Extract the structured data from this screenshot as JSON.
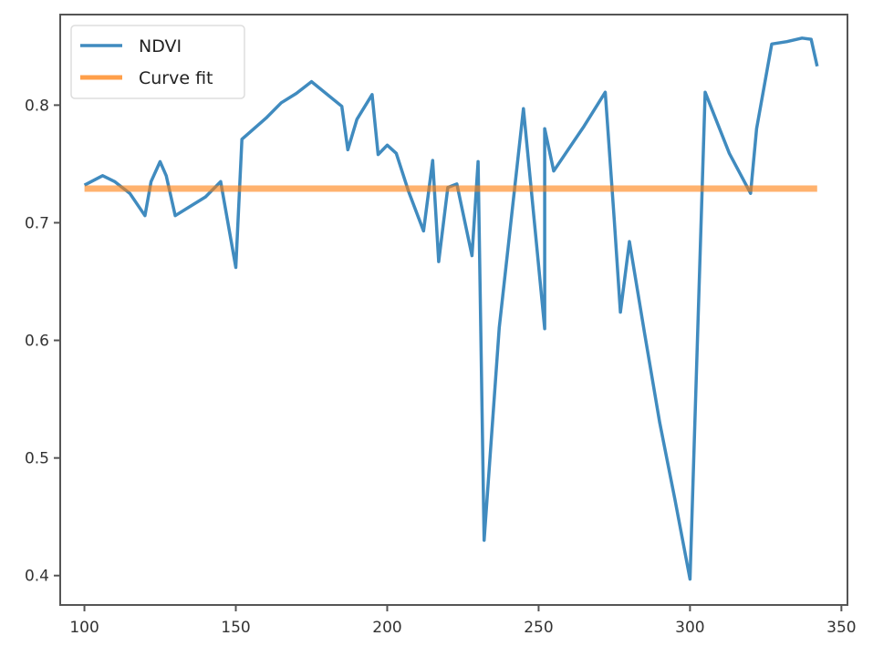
{
  "chart_data": {
    "type": "line",
    "title": "",
    "xlabel": "",
    "ylabel": "",
    "xlim": [
      92,
      352
    ],
    "ylim": [
      0.375,
      0.877
    ],
    "x_ticks": [
      100,
      150,
      200,
      250,
      300,
      350
    ],
    "y_ticks": [
      0.4,
      0.5,
      0.6,
      0.7,
      0.8
    ],
    "x_tick_labels": [
      "100",
      "150",
      "200",
      "250",
      "300",
      "350"
    ],
    "y_tick_labels": [
      "0.4",
      "0.5",
      "0.6",
      "0.7",
      "0.8"
    ],
    "grid": false,
    "legend_position": "top-left",
    "series": [
      {
        "name": "NDVI",
        "color": "#1f77b4",
        "x": [
          100,
          106,
          110,
          115,
          120,
          122,
          125,
          127,
          130,
          135,
          140,
          145,
          150,
          152,
          160,
          165,
          170,
          175,
          185,
          187,
          190,
          195,
          197,
          200,
          203,
          207,
          212,
          215,
          217,
          220,
          223,
          228,
          230,
          232,
          237,
          245,
          252,
          252,
          255,
          265,
          272,
          275,
          277,
          280,
          285,
          290,
          295,
          300,
          305,
          313,
          320,
          322,
          327,
          332,
          337,
          340,
          342
        ],
        "y": [
          0.732,
          0.74,
          0.735,
          0.725,
          0.706,
          0.735,
          0.752,
          0.74,
          0.706,
          0.714,
          0.722,
          0.735,
          0.662,
          0.771,
          0.789,
          0.802,
          0.81,
          0.82,
          0.799,
          0.762,
          0.788,
          0.809,
          0.758,
          0.766,
          0.759,
          0.727,
          0.693,
          0.753,
          0.667,
          0.73,
          0.733,
          0.672,
          0.752,
          0.43,
          0.611,
          0.797,
          0.61,
          0.78,
          0.744,
          0.782,
          0.811,
          0.702,
          0.624,
          0.684,
          0.606,
          0.53,
          0.465,
          0.397,
          0.811,
          0.759,
          0.725,
          0.78,
          0.852,
          0.854,
          0.857,
          0.856,
          0.833
        ]
      },
      {
        "name": "Curve fit",
        "color": "#ff7f0e",
        "x": [
          100,
          342
        ],
        "y": [
          0.729,
          0.729
        ]
      }
    ]
  }
}
